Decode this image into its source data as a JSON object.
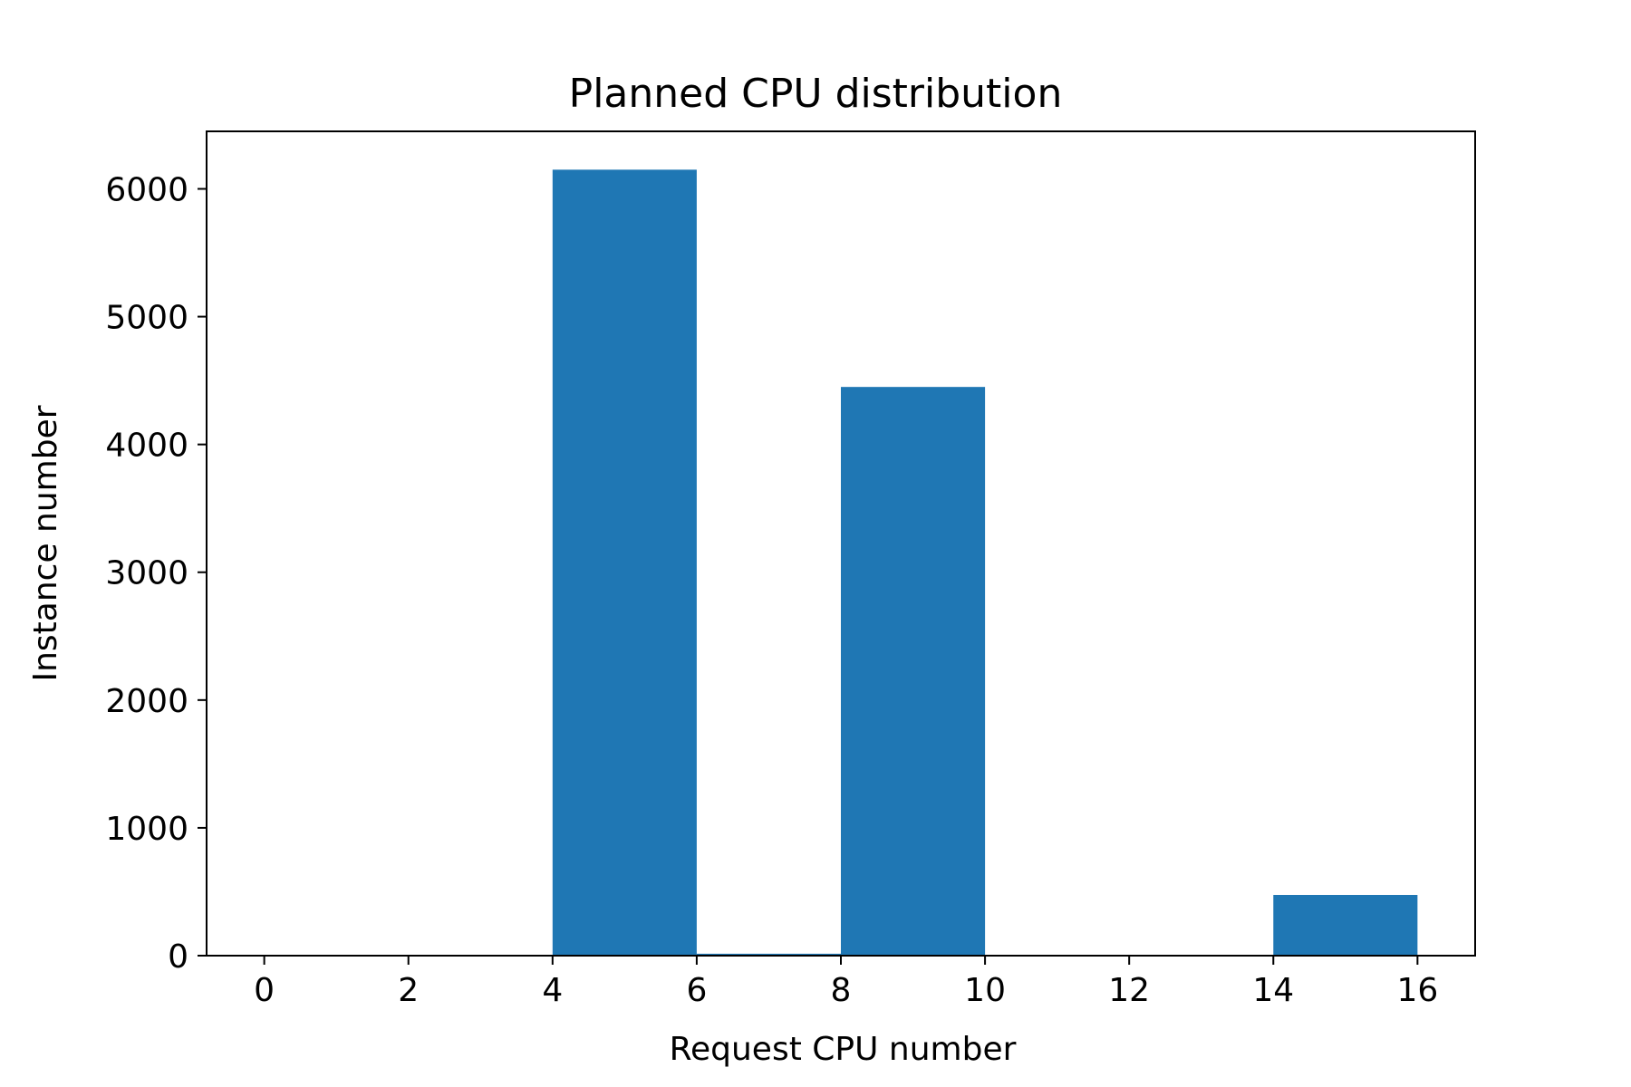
{
  "chart_data": {
    "type": "bar",
    "title": "Planned CPU distribution",
    "xlabel": "Request CPU number",
    "ylabel": "Instance number",
    "bins": [
      {
        "start": 0,
        "end": 2,
        "value": 0
      },
      {
        "start": 2,
        "end": 4,
        "value": 0
      },
      {
        "start": 4,
        "end": 6,
        "value": 6150
      },
      {
        "start": 6,
        "end": 8,
        "value": 15
      },
      {
        "start": 8,
        "end": 10,
        "value": 4450
      },
      {
        "start": 10,
        "end": 12,
        "value": 0
      },
      {
        "start": 12,
        "end": 14,
        "value": 0
      },
      {
        "start": 14,
        "end": 16,
        "value": 475
      }
    ],
    "xlim": [
      -0.8,
      16.8
    ],
    "ylim": [
      0,
      6450
    ],
    "xticks": [
      0,
      2,
      4,
      6,
      8,
      10,
      12,
      14,
      16
    ],
    "yticks": [
      0,
      1000,
      2000,
      3000,
      4000,
      5000,
      6000
    ],
    "bar_color": "#1f77b4",
    "grid": false,
    "legend": "none"
  }
}
